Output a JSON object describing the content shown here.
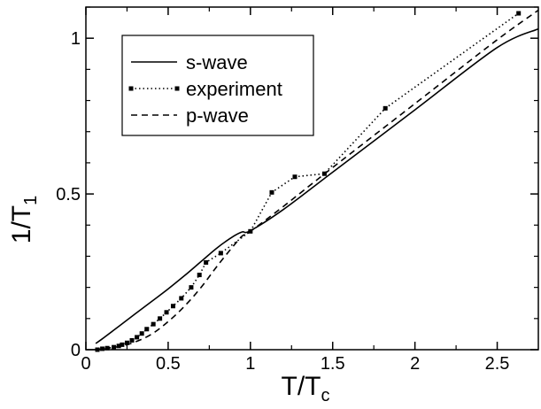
{
  "chart_data": {
    "type": "line",
    "xlabel": {
      "main": "T/T",
      "sub": "c"
    },
    "ylabel": {
      "main": "1/T",
      "sub": "1"
    },
    "xlim": [
      0,
      2.75
    ],
    "ylim": [
      0,
      1.1
    ],
    "grid": false,
    "legend_position": "top-left",
    "x_ticks": [
      {
        "value": 0,
        "label": "0"
      },
      {
        "value": 0.5,
        "label": "0.5"
      },
      {
        "value": 1,
        "label": "1"
      },
      {
        "value": 1.5,
        "label": "1.5"
      },
      {
        "value": 2,
        "label": "2"
      },
      {
        "value": 2.5,
        "label": "2.5"
      }
    ],
    "y_ticks": [
      {
        "value": 0,
        "label": "0"
      },
      {
        "value": 0.5,
        "label": "0.5"
      },
      {
        "value": 1,
        "label": "1"
      }
    ],
    "series": [
      {
        "name": "s-wave",
        "style": "solid",
        "color": "#000000",
        "markers": false,
        "x": [
          0.06,
          0.1,
          0.2,
          0.3,
          0.4,
          0.5,
          0.6,
          0.7,
          0.8,
          0.9,
          0.95,
          1.0,
          1.2,
          1.5,
          2.0,
          2.5,
          2.75
        ],
        "y": [
          0.02,
          0.035,
          0.075,
          0.115,
          0.155,
          0.195,
          0.238,
          0.283,
          0.328,
          0.365,
          0.378,
          0.382,
          0.45,
          0.57,
          0.77,
          0.97,
          1.03
        ]
      },
      {
        "name": "experiment",
        "style": "dotted",
        "color": "#000000",
        "markers": true,
        "x": [
          0.07,
          0.1,
          0.13,
          0.17,
          0.2,
          0.22,
          0.25,
          0.28,
          0.31,
          0.34,
          0.37,
          0.41,
          0.45,
          0.49,
          0.53,
          0.58,
          0.64,
          0.69,
          0.73,
          0.82,
          1.0,
          1.13,
          1.27,
          1.45,
          1.82,
          2.63
        ],
        "y": [
          0.0,
          0.003,
          0.005,
          0.008,
          0.012,
          0.016,
          0.022,
          0.03,
          0.04,
          0.052,
          0.066,
          0.082,
          0.1,
          0.12,
          0.14,
          0.165,
          0.2,
          0.24,
          0.28,
          0.31,
          0.38,
          0.505,
          0.555,
          0.565,
          0.775,
          1.08
        ]
      },
      {
        "name": "p-wave",
        "style": "dashed",
        "color": "#000000",
        "markers": false,
        "x": [
          0.05,
          0.2,
          0.3,
          0.4,
          0.5,
          0.6,
          0.7,
          0.8,
          0.9,
          0.95,
          1.0,
          1.2,
          1.5,
          2.0,
          2.5,
          2.75
        ],
        "y": [
          0.0,
          0.01,
          0.025,
          0.05,
          0.09,
          0.14,
          0.2,
          0.27,
          0.335,
          0.365,
          0.38,
          0.46,
          0.585,
          0.79,
          0.995,
          1.09
        ]
      }
    ]
  }
}
